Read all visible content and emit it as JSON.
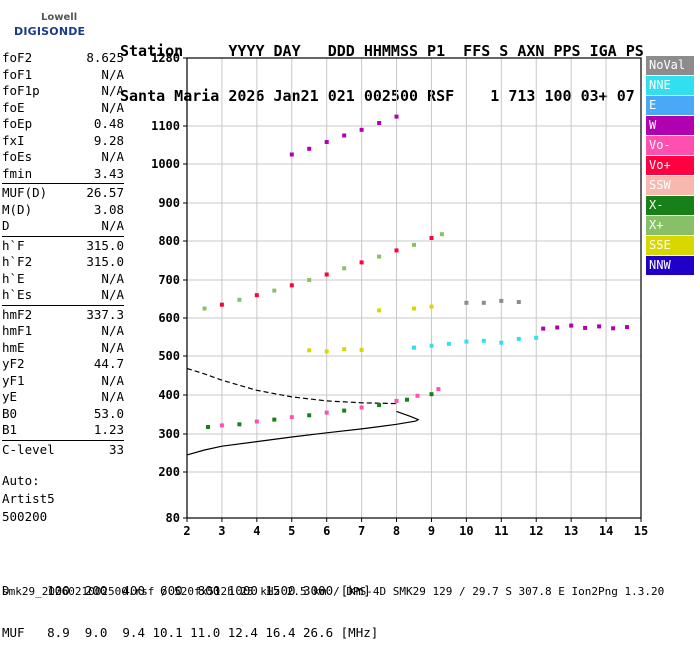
{
  "logo": {
    "line1": "Lowell",
    "line2": "DIGISONDE"
  },
  "header": {
    "line1": "Station     YYYY DAY   DDD HHMMSS P1  FFS S AXN PPS IGA PS",
    "line2": "Santa Maria 2026 Jan21 021 002500 RSF    1 713 100 03+ 07"
  },
  "params": [
    {
      "label": "foF2",
      "value": "8.625"
    },
    {
      "label": "foF1",
      "value": "N/A"
    },
    {
      "label": "foF1p",
      "value": "N/A"
    },
    {
      "label": "foE",
      "value": "N/A"
    },
    {
      "label": "foEp",
      "value": "0.48"
    },
    {
      "label": "fxI",
      "value": "9.28"
    },
    {
      "label": "foEs",
      "value": "N/A"
    },
    {
      "label": "fmin",
      "value": "3.43"
    },
    {
      "sep": true
    },
    {
      "label": "MUF(D)",
      "value": "26.57"
    },
    {
      "label": "M(D)",
      "value": "3.08"
    },
    {
      "label": "D",
      "value": "N/A"
    },
    {
      "sep": true
    },
    {
      "label": "h`F",
      "value": "315.0"
    },
    {
      "label": "h`F2",
      "value": "315.0"
    },
    {
      "label": "h`E",
      "value": "N/A"
    },
    {
      "label": "h`Es",
      "value": "N/A"
    },
    {
      "sep": true
    },
    {
      "label": "hmF2",
      "value": "337.3"
    },
    {
      "label": "hmF1",
      "value": "N/A"
    },
    {
      "label": "hmE",
      "value": "N/A"
    },
    {
      "label": "yF2",
      "value": "44.7"
    },
    {
      "label": "yF1",
      "value": "N/A"
    },
    {
      "label": "yE",
      "value": "N/A"
    },
    {
      "label": "B0",
      "value": "53.0"
    },
    {
      "label": "B1",
      "value": "1.23"
    },
    {
      "sep": true
    },
    {
      "label": "C-level",
      "value": "33"
    }
  ],
  "auto": {
    "line1": "Auto:",
    "line2": "Artist5",
    "line3": "500200"
  },
  "legend": [
    {
      "label": "NoVal",
      "color": "#8c8c8c"
    },
    {
      "label": "NNE",
      "color": "#30e0f0"
    },
    {
      "label": "E",
      "color": "#4aa8f8"
    },
    {
      "label": "W",
      "color": "#b000b0"
    },
    {
      "label": "Vo-",
      "color": "#ff50b0"
    },
    {
      "label": "Vo+",
      "color": "#ff0040"
    },
    {
      "label": "SSW",
      "color": "#f8b8b0"
    },
    {
      "label": "X-",
      "color": "#188018"
    },
    {
      "label": "X+",
      "color": "#88c068"
    },
    {
      "label": "SSE",
      "color": "#d8d800"
    },
    {
      "label": "NNW",
      "color": "#2000c8"
    }
  ],
  "bottom": {
    "line1": "D     100  200  400  600  800 1000 1500 3000 [km]",
    "line2": "MUF   8.9  9.0  9.4 10.1 11.0 12.4 16.4 26.6 [MHz]"
  },
  "footer": "smk29_2026021002500.rsf / 520fx512h 25 kHz 2.5 km / DPS-4D SMK29 129 / 29.7 S 307.8 E Ion2Png 1.3.20",
  "chart_data": {
    "type": "scatter",
    "xlabel": "",
    "ylabel": "",
    "xlim": [
      2,
      15
    ],
    "xticks": [
      2,
      3,
      4,
      5,
      6,
      7,
      8,
      9,
      10,
      11,
      12,
      13,
      14,
      15
    ],
    "ylim": [
      80,
      1280
    ],
    "yticks": [
      80,
      200,
      300,
      400,
      500,
      600,
      700,
      800,
      900,
      1000,
      1100,
      1280
    ],
    "grid": true,
    "series": [
      {
        "name": "X-",
        "points": [
          [
            2.6,
            318
          ],
          [
            3.5,
            325
          ],
          [
            4.5,
            337
          ],
          [
            5.5,
            348
          ],
          [
            6.5,
            360
          ],
          [
            7.5,
            374
          ],
          [
            8.3,
            388
          ],
          [
            9.0,
            402
          ]
        ]
      },
      {
        "name": "Vo-",
        "points": [
          [
            3.0,
            322
          ],
          [
            4.0,
            332
          ],
          [
            5.0,
            343
          ],
          [
            6.0,
            355
          ],
          [
            7.0,
            368
          ],
          [
            8.0,
            385
          ],
          [
            8.6,
            398
          ],
          [
            9.2,
            415
          ]
        ]
      },
      {
        "name": "X+",
        "points": [
          [
            2.5,
            625
          ],
          [
            3.5,
            648
          ],
          [
            4.5,
            672
          ],
          [
            5.5,
            700
          ],
          [
            6.5,
            730
          ],
          [
            7.5,
            760
          ],
          [
            8.5,
            790
          ],
          [
            9.3,
            818
          ]
        ]
      },
      {
        "name": "Vo+",
        "points": [
          [
            3.0,
            635
          ],
          [
            4.0,
            660
          ],
          [
            5.0,
            686
          ],
          [
            6.0,
            714
          ],
          [
            7.0,
            745
          ],
          [
            8.0,
            776
          ],
          [
            9.0,
            808
          ]
        ]
      },
      {
        "name": "W",
        "points": [
          [
            5.0,
            1025
          ],
          [
            5.5,
            1040
          ],
          [
            6.0,
            1058
          ],
          [
            6.5,
            1075
          ],
          [
            7.0,
            1090
          ],
          [
            7.5,
            1108
          ],
          [
            8.0,
            1125
          ]
        ]
      },
      {
        "name": "NNE",
        "points": [
          [
            8.5,
            522
          ],
          [
            9.0,
            527
          ],
          [
            9.5,
            532
          ],
          [
            10.0,
            538
          ],
          [
            10.5,
            540
          ],
          [
            11.0,
            535
          ],
          [
            11.5,
            545
          ],
          [
            12.0,
            548
          ]
        ]
      },
      {
        "name": "W",
        "points": [
          [
            12.2,
            572
          ],
          [
            12.6,
            575
          ],
          [
            13.0,
            580
          ],
          [
            13.4,
            574
          ],
          [
            13.8,
            578
          ],
          [
            14.2,
            573
          ],
          [
            14.6,
            576
          ]
        ]
      },
      {
        "name": "SSE",
        "points": [
          [
            5.5,
            515
          ],
          [
            6.0,
            512
          ],
          [
            6.5,
            518
          ],
          [
            7.0,
            516
          ],
          [
            7.5,
            620
          ],
          [
            8.5,
            625
          ],
          [
            9.0,
            630
          ]
        ]
      },
      {
        "name": "NoVal",
        "points": [
          [
            10.0,
            640
          ],
          [
            10.5,
            640
          ],
          [
            11.0,
            645
          ],
          [
            11.5,
            642
          ]
        ]
      }
    ],
    "profile_curves": [
      {
        "style": "solid",
        "points": [
          [
            2.0,
            245
          ],
          [
            2.5,
            258
          ],
          [
            3.0,
            268
          ],
          [
            4.0,
            280
          ],
          [
            5.0,
            292
          ],
          [
            6.0,
            303
          ],
          [
            7.0,
            313
          ],
          [
            8.0,
            325
          ],
          [
            8.55,
            333
          ],
          [
            8.62,
            337
          ],
          [
            8.4,
            345
          ],
          [
            8.0,
            358
          ]
        ]
      },
      {
        "style": "dashed",
        "points": [
          [
            2.0,
            468
          ],
          [
            2.5,
            454
          ],
          [
            3.0,
            438
          ],
          [
            4.0,
            412
          ],
          [
            5.0,
            395
          ],
          [
            6.0,
            385
          ],
          [
            7.0,
            380
          ],
          [
            8.0,
            378
          ]
        ]
      }
    ]
  }
}
